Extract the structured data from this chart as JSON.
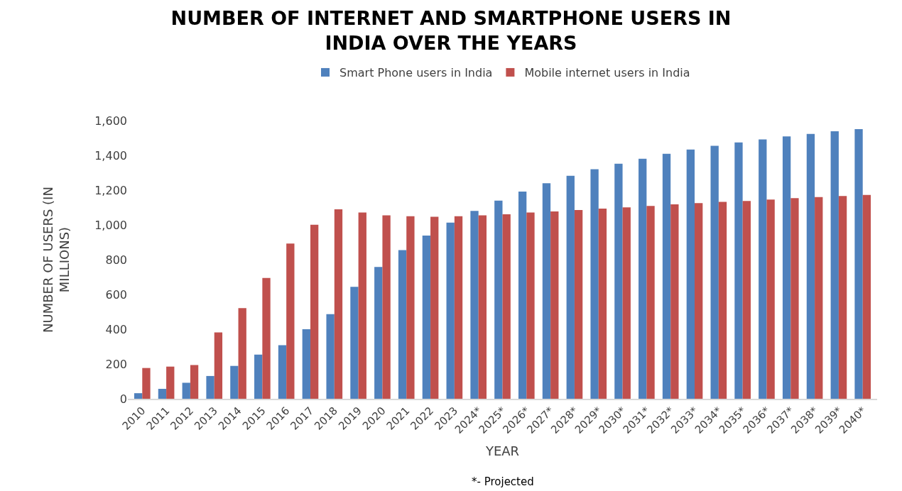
{
  "chart_data": {
    "type": "bar",
    "title": "NUMBER OF INTERNET AND SMARTPHONE USERS IN\nINDIA OVER THE YEARS",
    "xlabel": "YEAR",
    "ylabel": "NUMBER OF USERS (IN\nMILLIONS)",
    "categories": [
      "2010",
      "2011",
      "2012",
      "2013",
      "2014",
      "2015",
      "2016",
      "2017",
      "2018",
      "2019",
      "2020",
      "2021",
      "2022",
      "2023",
      "2024*",
      "2025*",
      "2026*",
      "2027*",
      "2028*",
      "2029*",
      "2030*",
      "2031*",
      "2032*",
      "2033*",
      "2034*",
      "2035*",
      "2036*",
      "2037*",
      "2038*",
      "2039*",
      "2040*"
    ],
    "series": [
      {
        "name": "Smart Phone users in India",
        "color": "#4f81bd",
        "values": [
          32,
          57,
          92,
          131,
          189,
          254,
          308,
          400,
          487,
          644,
          758,
          855,
          939,
          1013,
          1081,
          1140,
          1192,
          1240,
          1283,
          1320,
          1352,
          1381,
          1409,
          1434,
          1455,
          1475,
          1492,
          1509,
          1523,
          1539,
          1551
        ]
      },
      {
        "name": "Mobile internet users in India",
        "color": "#c0504d",
        "values": [
          177,
          185,
          194,
          382,
          521,
          695,
          893,
          1001,
          1090,
          1071,
          1055,
          1050,
          1047,
          1050,
          1055,
          1061,
          1071,
          1078,
          1086,
          1094,
          1101,
          1109,
          1118,
          1126,
          1133,
          1138,
          1146,
          1154,
          1160,
          1166,
          1172
        ]
      }
    ],
    "ylim": [
      0,
      1600
    ],
    "yticks": [
      {
        "value": 0,
        "label": "0"
      },
      {
        "value": 200,
        "label": "200"
      },
      {
        "value": 400,
        "label": "400"
      },
      {
        "value": 600,
        "label": "600"
      },
      {
        "value": 800,
        "label": "800"
      },
      {
        "value": 1000,
        "label": "1,000"
      },
      {
        "value": 1200,
        "label": "1,200"
      },
      {
        "value": 1400,
        "label": "1,400"
      },
      {
        "value": 1600,
        "label": "1,600"
      }
    ],
    "legend": "top",
    "annotations": [
      "*- Projected"
    ]
  }
}
